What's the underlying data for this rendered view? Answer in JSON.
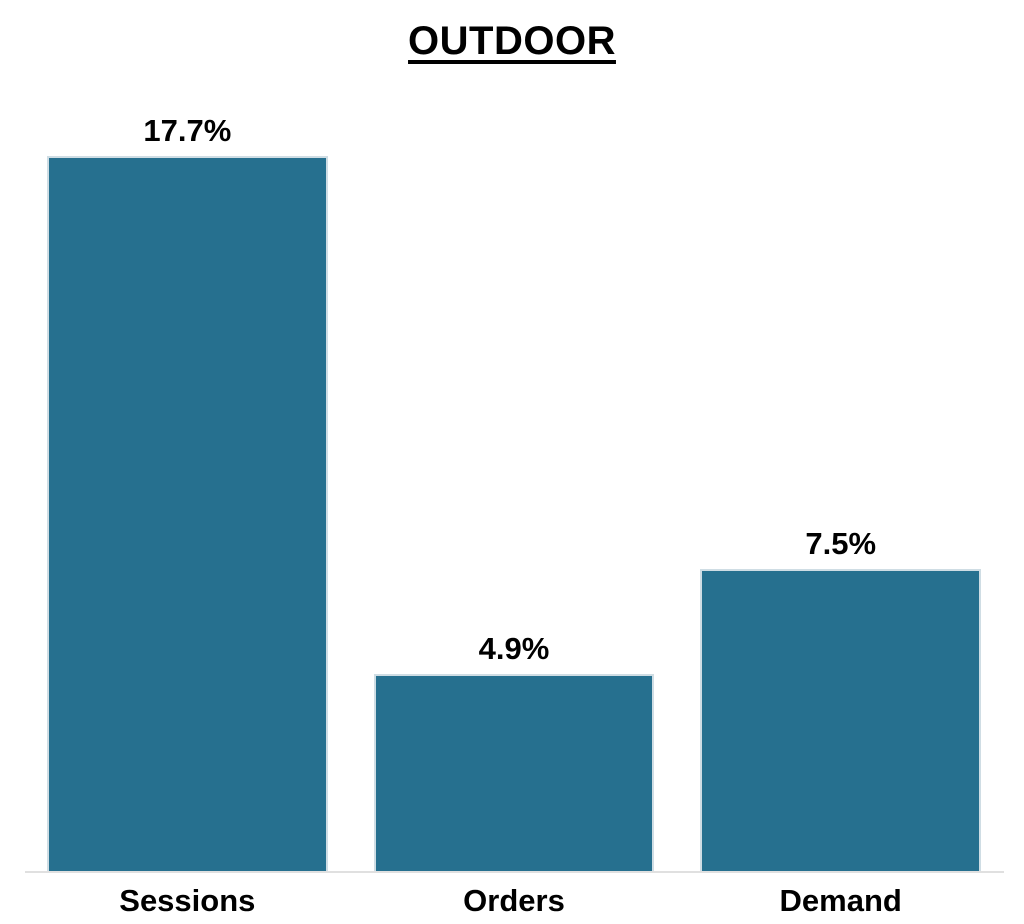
{
  "chart_data": {
    "type": "bar",
    "title": "OUTDOOR",
    "categories": [
      "Sessions",
      "Orders",
      "Demand"
    ],
    "values": [
      17.7,
      4.9,
      7.5
    ],
    "value_labels": [
      "17.7%",
      "4.9%",
      "7.5%"
    ],
    "xlabel": "",
    "ylabel": "",
    "ylim": [
      0,
      19.6
    ],
    "grid": false,
    "legend": false,
    "bar_color": "#26708f",
    "bar_border_color": "#cfdde4",
    "axis_line_color": "#e0e0e0",
    "text_color": "#000000",
    "background_color": "#ffffff"
  }
}
